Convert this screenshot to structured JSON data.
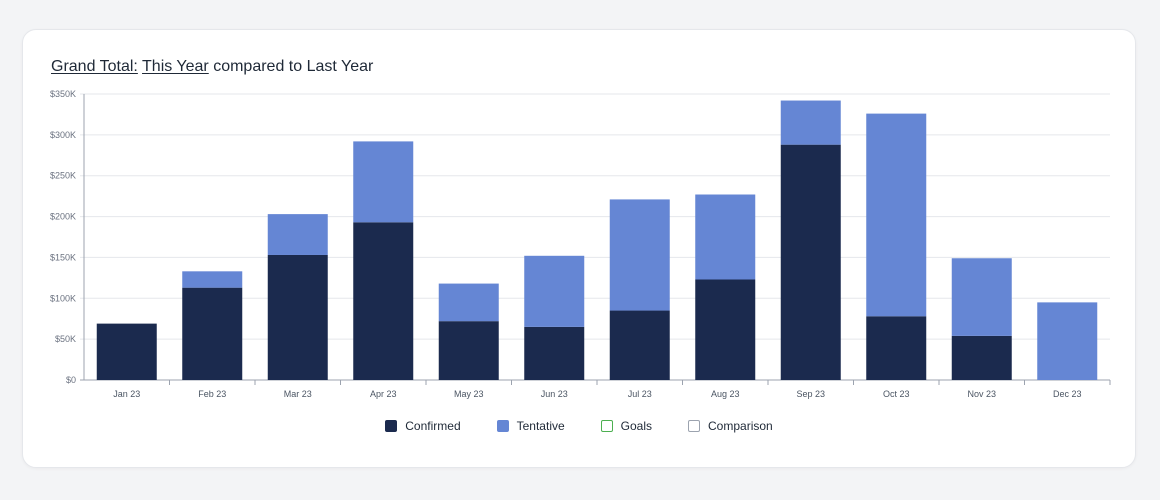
{
  "header": {
    "title_part1": "Grand Total:",
    "title_part2": "This Year",
    "title_part3": "compared to Last Year"
  },
  "colors": {
    "confirmed": "#1b2a4e",
    "tentative": "#6586d4",
    "goals": "#4caf50",
    "comparison": "#9ca3af"
  },
  "legend": [
    {
      "label": "Confirmed",
      "key": "confirmed",
      "filled": true
    },
    {
      "label": "Tentative",
      "key": "tentative",
      "filled": true
    },
    {
      "label": "Goals",
      "key": "goals",
      "filled": false
    },
    {
      "label": "Comparison",
      "key": "comparison",
      "filled": false
    }
  ],
  "chart_data": {
    "type": "bar",
    "stacked": true,
    "title": "Grand Total: This Year compared to Last Year",
    "xlabel": "",
    "ylabel": "",
    "ylim": [
      0,
      350000
    ],
    "yticks": [
      "$0",
      "$50K",
      "$100K",
      "$150K",
      "$200K",
      "$250K",
      "$300K",
      "$350K"
    ],
    "categories": [
      "Jan 23",
      "Feb 23",
      "Mar 23",
      "Apr 23",
      "May 23",
      "Jun 23",
      "Jul 23",
      "Aug 23",
      "Sep 23",
      "Oct 23",
      "Nov 23",
      "Dec 23"
    ],
    "series": [
      {
        "name": "Confirmed",
        "values": [
          69000,
          113000,
          153000,
          193000,
          72000,
          65000,
          85000,
          123000,
          288000,
          78000,
          54000,
          0
        ]
      },
      {
        "name": "Tentative",
        "values": [
          0,
          20000,
          50000,
          99000,
          46000,
          87000,
          136000,
          104000,
          54000,
          248000,
          95000,
          95000
        ]
      }
    ],
    "grid": true,
    "legend_position": "bottom"
  }
}
